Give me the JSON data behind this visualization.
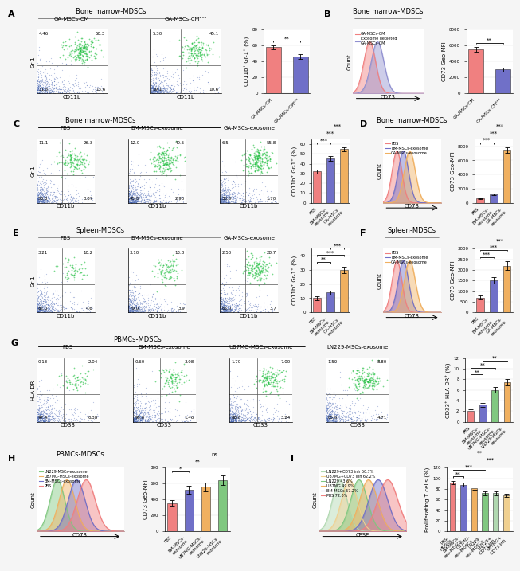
{
  "background_color": "#f5f5f5",
  "panel_A": {
    "bar_values": [
      58,
      46
    ],
    "bar_errors": [
      2.5,
      3.0
    ],
    "bar_colors": [
      "#f08080",
      "#7070c8"
    ],
    "bar_labels": [
      "GA-MSCs-CM",
      "GA-MSCs-CMᵉˣᵒ"
    ],
    "bar_ylabel": "CD11b⁺ Gr-1⁺ (%)",
    "bar_ylim": [
      0,
      80
    ]
  },
  "panel_B": {
    "hist_colors": [
      "#f08080",
      "#9090d0"
    ],
    "hist_labels": [
      "GA-MSCs-CM",
      "Exosome depleted\nGA-MSCs-CM"
    ],
    "bar_values": [
      5500,
      3000
    ],
    "bar_errors": [
      300,
      250
    ],
    "bar_colors": [
      "#f08080",
      "#7070c8"
    ],
    "bar_labels": [
      "GA-MSCs-CM",
      "GA-MSCs-CMᵉˣᵒ"
    ],
    "bar_ylabel": "CD73 Geo-MFI",
    "bar_ylim": [
      0,
      8000
    ]
  },
  "panel_C": {
    "bar_values": [
      32,
      45,
      55
    ],
    "bar_errors": [
      2.0,
      2.5,
      2.0
    ],
    "bar_colors": [
      "#f08080",
      "#7070c8",
      "#f0b060"
    ],
    "bar_labels": [
      "PBS",
      "BM-MSCs-\nexosome",
      "GA-MSCs-\nexosome"
    ],
    "bar_ylabel": "CD11b⁺ Gr-1⁺ (%)",
    "bar_ylim": [
      0,
      65
    ]
  },
  "panel_D": {
    "hist_colors": [
      "#f08080",
      "#7070c8",
      "#f0b060"
    ],
    "hist_labels": [
      "PBS",
      "BM-MSCs-exosome",
      "GA-MSCs-exosome"
    ],
    "bar_values": [
      600,
      1200,
      7500
    ],
    "bar_errors": [
      80,
      150,
      400
    ],
    "bar_colors": [
      "#f08080",
      "#7070c8",
      "#f0b060"
    ],
    "bar_labels": [
      "PBS",
      "BM-MSCs-\nexosome",
      "GA-MSCs-\nexosome"
    ],
    "bar_ylabel": "CD73 Geo-MFI",
    "bar_ylim": [
      0,
      9000
    ]
  },
  "panel_E": {
    "bar_values": [
      10,
      14,
      30
    ],
    "bar_errors": [
      1.5,
      1.5,
      2.5
    ],
    "bar_colors": [
      "#f08080",
      "#7070c8",
      "#f0b060"
    ],
    "bar_labels": [
      "PBS",
      "BM-MSCs-\nexosome",
      "GA-MSCs-\nexosome"
    ],
    "bar_ylabel": "CD11b⁺ Gr-1⁺ (%)",
    "bar_ylim": [
      0,
      45
    ]
  },
  "panel_F": {
    "hist_colors": [
      "#f08080",
      "#7070c8",
      "#f0b060"
    ],
    "hist_labels": [
      "PBS",
      "BM-MSCs-exosome",
      "GA-MSCs-exosome"
    ],
    "bar_values": [
      700,
      1500,
      2200
    ],
    "bar_errors": [
      100,
      150,
      200
    ],
    "bar_colors": [
      "#f08080",
      "#7070c8",
      "#f0b060"
    ],
    "bar_labels": [
      "PBS",
      "BM-MSCs-\nexosome",
      "GA-MSCs-\nexosome"
    ],
    "bar_ylabel": "CD73 Geo-MFI",
    "bar_ylim": [
      0,
      3000
    ]
  },
  "panel_G": {
    "bar_values": [
      2.0,
      3.2,
      6.0,
      7.5
    ],
    "bar_errors": [
      0.3,
      0.4,
      0.5,
      0.6
    ],
    "bar_colors": [
      "#f08080",
      "#7070c8",
      "#80c880",
      "#f0b060"
    ],
    "bar_labels": [
      "PBS",
      "BM-MSCs-\nexosome",
      "U87MG-MSCs-\nexosome",
      "LN229-MSCs-\nexosome"
    ],
    "bar_ylabel": "CD33⁺ HLA-DR⁺ (%)",
    "bar_ylim": [
      0,
      12
    ]
  },
  "panel_H": {
    "hist_colors": [
      "#80c880",
      "#f0b060",
      "#7070c8",
      "#f08080"
    ],
    "hist_labels": [
      "LN229-MSCs-exosome",
      "U87MG-MSCs-exosome",
      "BM-MSCs-exosome",
      "PBS"
    ],
    "bar_values": [
      350,
      520,
      560,
      640
    ],
    "bar_errors": [
      40,
      50,
      55,
      60
    ],
    "bar_colors": [
      "#f08080",
      "#7070c8",
      "#f0b060",
      "#80c880"
    ],
    "bar_labels": [
      "PBS",
      "BM-MSCs-\nexosome",
      "U87MG-MSCs-\nexosome",
      "LN229-MSCs-\nexosome"
    ],
    "bar_ylabel": "CD73 Geo-MFI",
    "bar_ylim": [
      0,
      800
    ]
  },
  "panel_I": {
    "hist_colors": [
      "#b0d8b0",
      "#f0d090",
      "#80c880",
      "#f0b060",
      "#7070c8",
      "#f08080"
    ],
    "hist_labels": [
      "LN229+CD73 inh 60.7%",
      "U87MG+CD73 inh 62.2%",
      "LN229 43.6%",
      "U87MG 49.9%",
      "BM-MSCs 57.2%",
      "PBS 72.0%"
    ],
    "bar_values": [
      92,
      88,
      82,
      72,
      72,
      68
    ],
    "bar_errors": [
      3,
      4,
      3,
      4,
      4,
      3
    ],
    "bar_colors": [
      "#f08080",
      "#7070c8",
      "#f0b060",
      "#80c880",
      "#b0d8b0",
      "#f0d090"
    ],
    "bar_labels": [
      "PBS-\nMDSCs",
      "BM-MSCs-\nexo-MDSCs",
      "U87MG-\nexo-MDSCs",
      "LN229-\nexo-MDSCs",
      "LN229+\nCD73 inh",
      "U87MG+\nCD73 inh"
    ],
    "bar_ylabel": "Proliferating T cells (%)",
    "bar_ylim": [
      0,
      120
    ]
  }
}
